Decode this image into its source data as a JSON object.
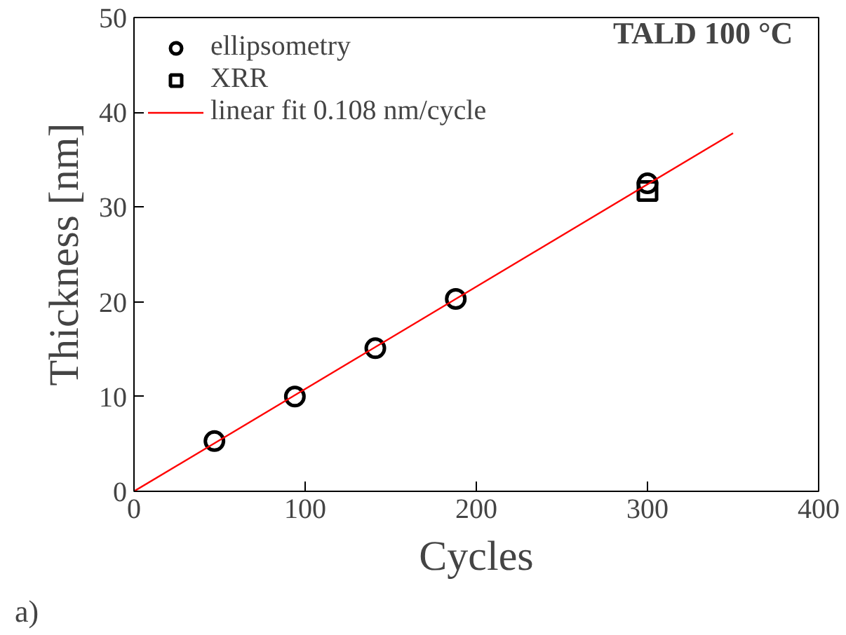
{
  "chart_data": {
    "type": "scatter",
    "xlabel": "Cycles",
    "ylabel": "Thickness [nm]",
    "annotations": [
      "TALD 100 °C",
      "a)"
    ],
    "xlim": [
      0,
      400
    ],
    "xticks": [
      0,
      100,
      200,
      300,
      400
    ],
    "ylim": [
      0,
      50
    ],
    "yticks": [
      0,
      10,
      20,
      30,
      40,
      50
    ],
    "grid": false,
    "legend": "top left",
    "series": [
      {
        "name": "ellipsometry",
        "marker": "circle",
        "color": "#000000",
        "x": [
          47,
          94,
          141,
          188,
          300
        ],
        "values": [
          5.3,
          10.0,
          15.1,
          20.3,
          32.5
        ]
      },
      {
        "name": "XRR",
        "marker": "square",
        "color": "#000000",
        "x": [
          300
        ],
        "values": [
          31.7
        ]
      },
      {
        "name": "linear fit 0.108 nm/cycle",
        "type": "line",
        "color": "#ff0000",
        "x": [
          0,
          350
        ],
        "values": [
          0,
          37.8
        ]
      }
    ]
  }
}
